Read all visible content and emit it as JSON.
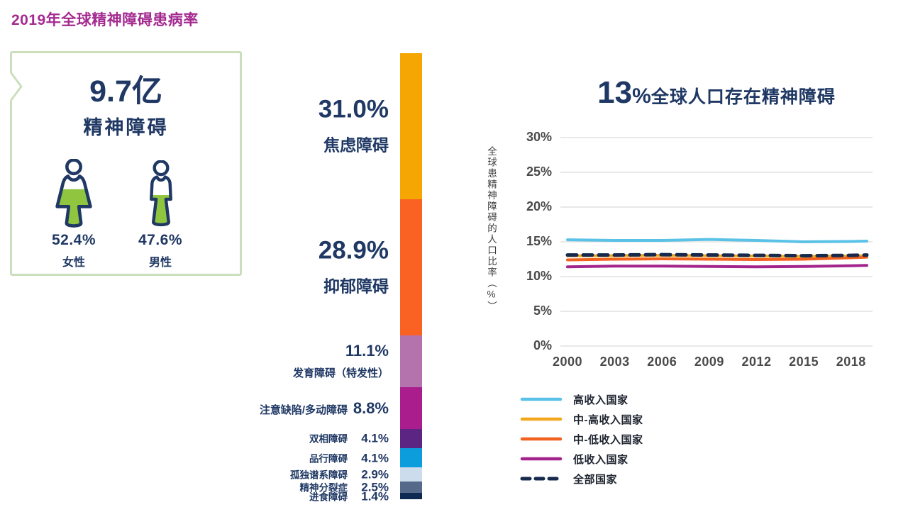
{
  "page": {
    "title": "2019年全球精神障碍患病率"
  },
  "summary_card": {
    "headline": "9.7亿",
    "subtitle": "精神障碍",
    "female": {
      "percent": "52.4%",
      "label": "女性"
    },
    "male": {
      "percent": "47.6%",
      "label": "男性"
    }
  },
  "prevalence_bar": {
    "items": [
      {
        "label": "焦虑障碍",
        "value": 31.0,
        "value_label": "31.0%",
        "color": "#F5A602"
      },
      {
        "label": "抑郁障碍",
        "value": 28.9,
        "value_label": "28.9%",
        "color": "#F96222"
      },
      {
        "label": "发育障碍（特发性）",
        "value": 11.1,
        "value_label": "11.1%",
        "color": "#B573AE"
      },
      {
        "label": "注意缺陷/多动障碍",
        "value": 8.8,
        "value_label": "8.8%",
        "color": "#A91E8C"
      },
      {
        "label": "双相障碍",
        "value": 4.1,
        "value_label": "4.1%",
        "color": "#5C2483"
      },
      {
        "label": "品行障碍",
        "value": 4.1,
        "value_label": "4.1%",
        "color": "#0C9EDC"
      },
      {
        "label": "孤独谱系障碍",
        "value": 2.9,
        "value_label": "2.9%",
        "color": "#CCDCEC"
      },
      {
        "label": "精神分裂症",
        "value": 2.5,
        "value_label": "2.5%",
        "color": "#55698B"
      },
      {
        "label": "进食障碍",
        "value": 1.4,
        "value_label": "1.4%",
        "color": "#0E2A52"
      }
    ]
  },
  "chart_data": {
    "type": "line",
    "title_number": "13",
    "title_percent": "%",
    "title_text": "全球人口存在精神障碍",
    "ylabel": "全球患精神障碍的人口比率（%）",
    "ylim": [
      0,
      30
    ],
    "grid": true,
    "legend_position": "bottom-left",
    "y_ticks": [
      {
        "label": "30%",
        "value": 30
      },
      {
        "label": "25%",
        "value": 25
      },
      {
        "label": "20%",
        "value": 20
      },
      {
        "label": "15%",
        "value": 15
      },
      {
        "label": "10%",
        "value": 10
      },
      {
        "label": "5%",
        "value": 5
      },
      {
        "label": "0%",
        "value": 0
      }
    ],
    "x_ticks": [
      2000,
      2003,
      2006,
      2009,
      2012,
      2015,
      2018
    ],
    "x": [
      2000,
      2003,
      2006,
      2009,
      2012,
      2015,
      2018,
      2019
    ],
    "series": [
      {
        "name": "高收入国家",
        "color": "#5BC2E7",
        "dash": false,
        "values": [
          15.3,
          15.2,
          15.2,
          15.35,
          15.2,
          15.0,
          15.05,
          15.1
        ]
      },
      {
        "name": "中-高收入国家",
        "color": "#F2A71E",
        "dash": false,
        "values": [
          13.0,
          13.0,
          13.05,
          13.0,
          12.95,
          12.9,
          12.95,
          13.0
        ]
      },
      {
        "name": "中-低收入国家",
        "color": "#F1611F",
        "dash": false,
        "values": [
          12.4,
          12.5,
          12.55,
          12.5,
          12.45,
          12.5,
          12.7,
          12.8
        ]
      },
      {
        "name": "低收入国家",
        "color": "#A3258C",
        "dash": false,
        "values": [
          11.4,
          11.5,
          11.5,
          11.45,
          11.4,
          11.45,
          11.55,
          11.6
        ]
      },
      {
        "name": "全部国家",
        "color": "#17294D",
        "dash": true,
        "values": [
          13.1,
          13.1,
          13.15,
          13.1,
          13.05,
          13.0,
          13.05,
          13.1
        ]
      }
    ]
  },
  "colors": {
    "accent_navy": "#1F3864",
    "accent_green": "#90C53F",
    "card_border": "#CBDFBD",
    "title_magenta": "#A42A90"
  }
}
